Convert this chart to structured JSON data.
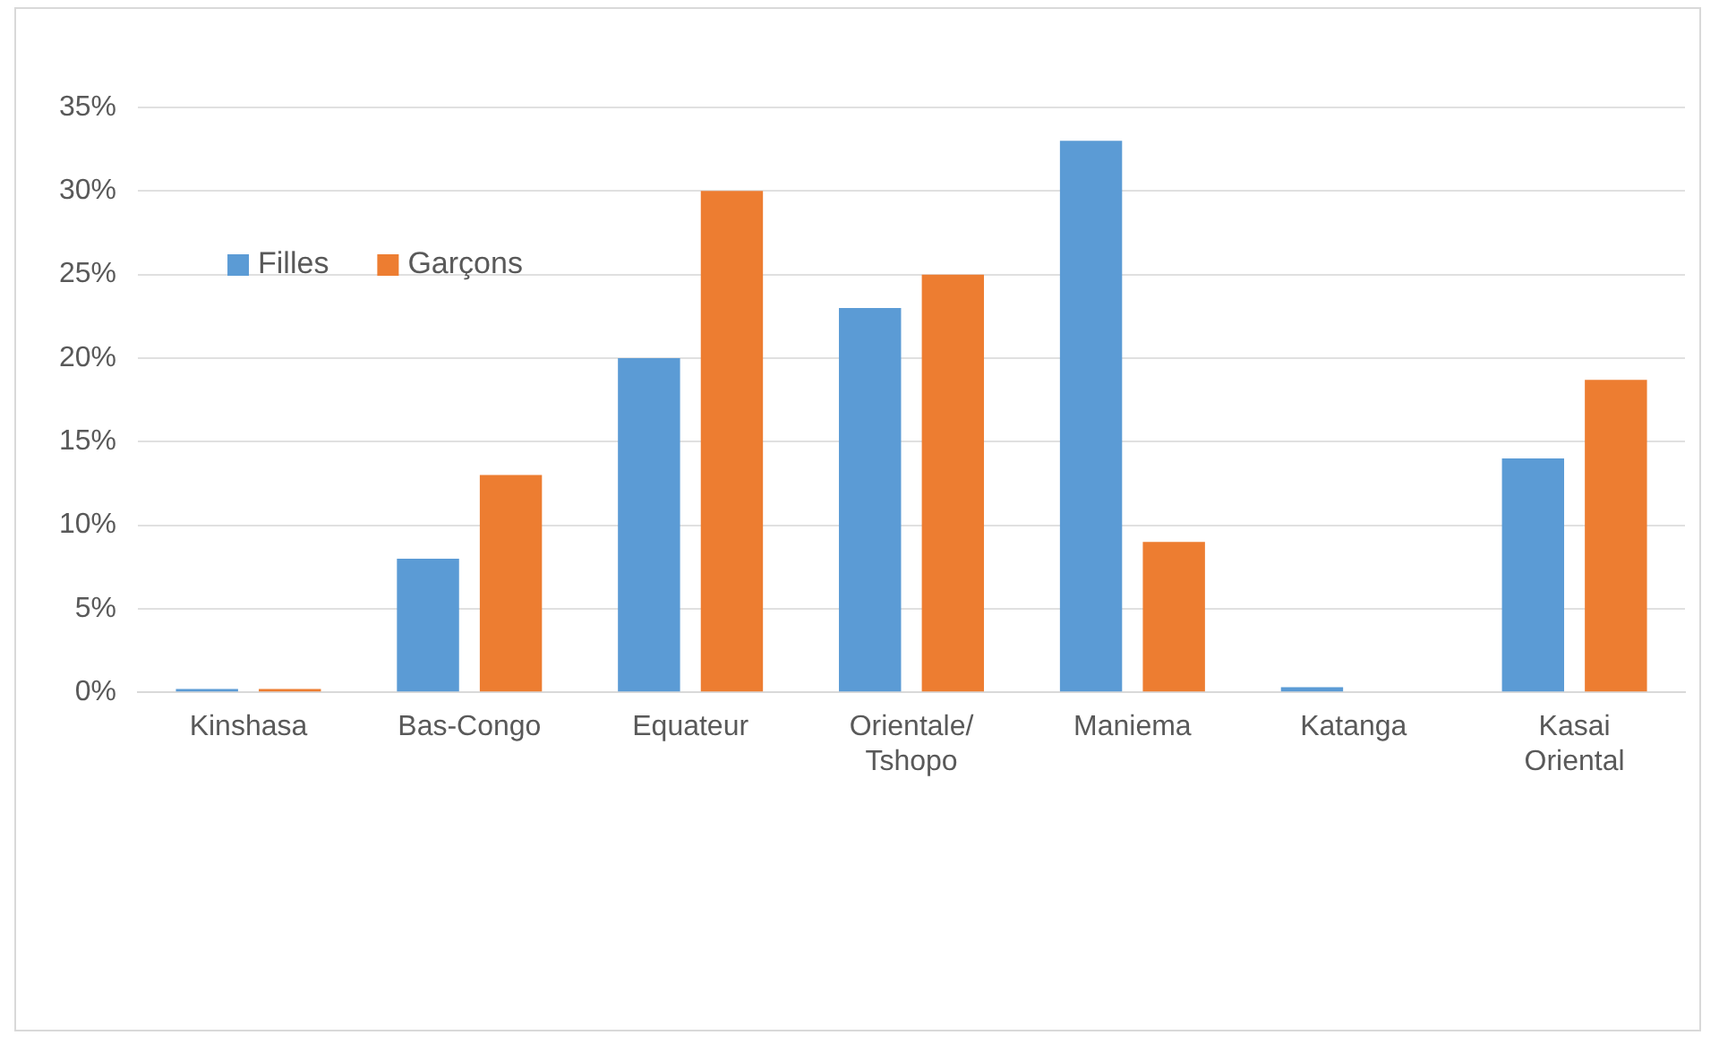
{
  "chart_data": {
    "type": "bar",
    "categories": [
      "Kinshasa",
      "Bas-Congo",
      "Equateur",
      "Orientale/ Tshopo",
      "Maniema",
      "Katanga",
      "Kasai Oriental"
    ],
    "series": [
      {
        "name": "Filles",
        "color": "#5b9bd5",
        "values": [
          0.2,
          8,
          20,
          23,
          33,
          0.3,
          14
        ]
      },
      {
        "name": "Garçons",
        "color": "#ed7d31",
        "values": [
          0.2,
          13,
          30,
          25,
          9,
          0,
          18.7
        ]
      }
    ],
    "ylim": [
      0,
      35
    ],
    "yticks": [
      {
        "value": 0,
        "label": "0%"
      },
      {
        "value": 5,
        "label": "5%"
      },
      {
        "value": 10,
        "label": "10%"
      },
      {
        "value": 15,
        "label": "15%"
      },
      {
        "value": 20,
        "label": "20%"
      },
      {
        "value": 25,
        "label": "25%"
      },
      {
        "value": 30,
        "label": "30%"
      },
      {
        "value": 35,
        "label": "35%"
      }
    ],
    "grid": "y",
    "legend": "top left"
  }
}
